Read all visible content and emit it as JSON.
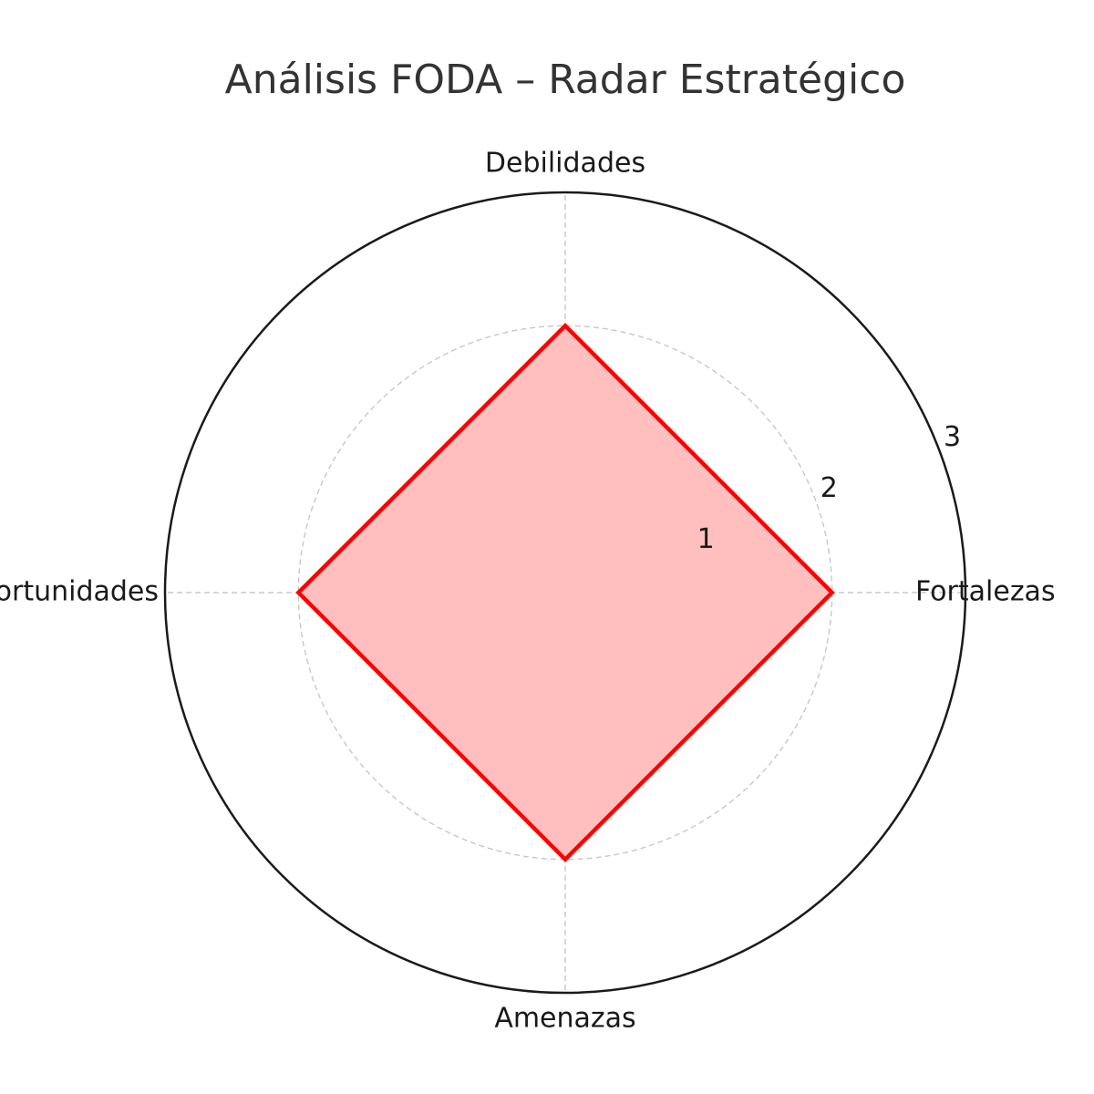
{
  "chart_data": {
    "type": "radar",
    "title": "Análisis FODA – Radar Estratégico",
    "categories": [
      "Fortalezas",
      "Debilidades",
      "Oportunidades",
      "Amenazas"
    ],
    "series": [
      {
        "values": [
          2,
          2,
          2,
          2
        ]
      }
    ],
    "rlim": [
      0,
      3
    ],
    "rticks": [
      1,
      2,
      3
    ],
    "rtick_labels": [
      "1",
      "2",
      "3"
    ],
    "grid": true,
    "colors": {
      "line": "#ff0000",
      "fill": "#ffbfbf",
      "grid": "#c8c8c8",
      "frame": "#1a1a1a"
    }
  }
}
